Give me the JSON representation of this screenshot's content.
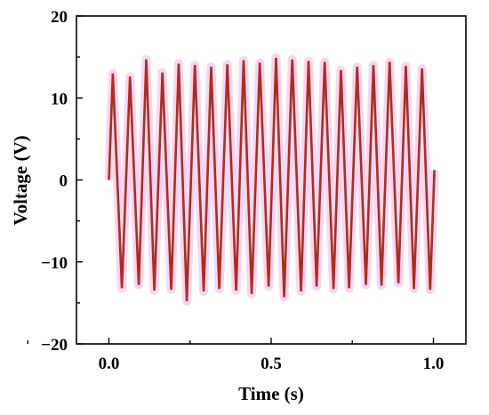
{
  "chart_data": {
    "type": "line",
    "xlabel": "Time (s)",
    "ylabel": "Voltage (V)",
    "xlim": [
      -0.1,
      1.1
    ],
    "ylim": [
      -20,
      20
    ],
    "xticks": [
      "0.0",
      "0.5",
      "1.0"
    ],
    "yticks": [
      "−20",
      "−10",
      "0",
      "10",
      "20"
    ],
    "grid": false,
    "series": [
      {
        "color": "#d91a1a",
        "shadow_color": "#f2c0f0",
        "line_color_secondary": "#6b4a1a",
        "x": [
          0.0,
          0.012,
          0.04,
          0.065,
          0.092,
          0.115,
          0.14,
          0.165,
          0.192,
          0.215,
          0.24,
          0.265,
          0.292,
          0.315,
          0.34,
          0.365,
          0.392,
          0.415,
          0.44,
          0.465,
          0.492,
          0.515,
          0.54,
          0.565,
          0.592,
          0.615,
          0.64,
          0.665,
          0.692,
          0.715,
          0.74,
          0.765,
          0.792,
          0.815,
          0.84,
          0.865,
          0.892,
          0.915,
          0.94,
          0.965,
          0.99,
          1.003
        ],
        "y": [
          0,
          13,
          -13.2,
          12.6,
          -12.8,
          14.7,
          -13.5,
          13.1,
          -13.4,
          14.2,
          -14.8,
          14.0,
          -13.6,
          13.8,
          -13.3,
          14.1,
          -13.5,
          14.6,
          -13.9,
          14.3,
          -13.0,
          14.9,
          -14.3,
          14.7,
          -13.6,
          14.5,
          -13.0,
          14.4,
          -13.3,
          13.4,
          -13.2,
          13.8,
          -12.8,
          14.0,
          -12.9,
          14.4,
          -12.6,
          13.9,
          -13.3,
          13.6,
          -13.4,
          1.2
        ]
      }
    ]
  }
}
